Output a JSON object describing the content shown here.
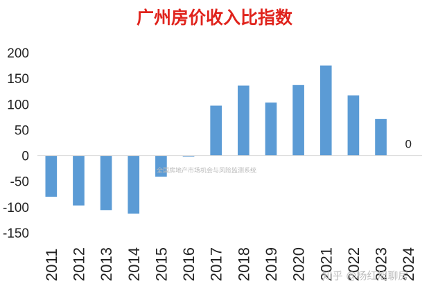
{
  "chart_data": {
    "type": "bar",
    "title": "广州房价收入比指数",
    "categories": [
      "2011",
      "2012",
      "2013",
      "2014",
      "2015",
      "2016",
      "2017",
      "2018",
      "2019",
      "2020",
      "2021",
      "2022",
      "2023",
      "2024"
    ],
    "values": [
      -80,
      -97,
      -106,
      -113,
      -41,
      -2,
      97,
      136,
      103,
      137,
      175,
      117,
      71,
      0
    ],
    "data_labels": [
      {
        "category": "2024",
        "text": "0"
      }
    ],
    "ylim": [
      -150,
      200
    ],
    "yticks": [
      200,
      150,
      100,
      50,
      0,
      -50,
      -100,
      -150
    ],
    "xlabel": "",
    "ylabel": "",
    "grid": false,
    "bar_color": "#5b9bd5"
  },
  "watermarks": {
    "center": "全国房地产市场机会与风险监测系统",
    "bottom_right": "知乎 @杨红旭聊房"
  },
  "colors": {
    "title": "#e0231c",
    "axis": "#d9d9d9"
  }
}
